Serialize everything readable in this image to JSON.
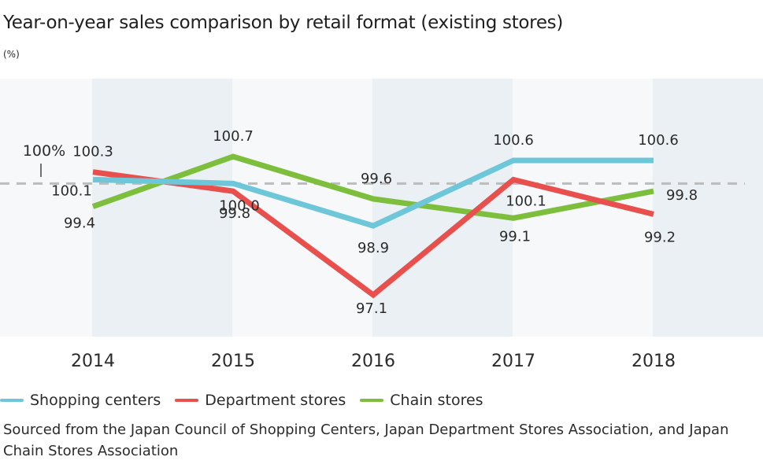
{
  "chart_data": {
    "type": "line",
    "title": "Year-on-year sales comparison by retail format (existing stores)",
    "unit": "(%)",
    "categories": [
      "2014",
      "2015",
      "2016",
      "2017",
      "2018"
    ],
    "reference": {
      "value": 100,
      "label": "100%"
    },
    "ylim": [
      96.5,
      101.2
    ],
    "grid": false,
    "legend_position": "bottom-left",
    "series": [
      {
        "name": "Shopping centers",
        "color": "#6ec7d9",
        "values": [
          100.1,
          100.0,
          98.9,
          100.6,
          100.6
        ],
        "labels": [
          "100.1",
          "100.0",
          "98.9",
          "100.6",
          "100.6"
        ]
      },
      {
        "name": "Department stores",
        "color": "#e8504e",
        "values": [
          100.3,
          99.8,
          97.1,
          100.1,
          99.2
        ],
        "labels": [
          "100.3",
          "99.8",
          "97.1",
          "100.1",
          "99.2"
        ]
      },
      {
        "name": "Chain stores",
        "color": "#7dbe3c",
        "values": [
          99.4,
          100.7,
          99.6,
          99.1,
          99.8
        ],
        "labels": [
          "99.4",
          "100.7",
          "99.6",
          "99.1",
          "99.8"
        ]
      }
    ],
    "source": "Sourced from the Japan Council of Shopping Centers, Japan Department Stores Association, and Japan Chain Stores Association"
  }
}
